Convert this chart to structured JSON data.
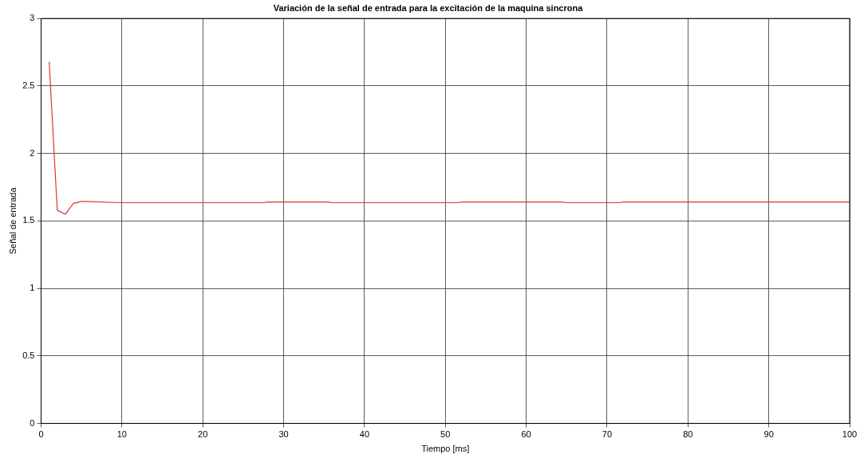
{
  "chart_data": {
    "type": "line",
    "title": "Variación de la señal de entrada para la excitación de la maquina sincrona",
    "xlabel": "Tiempo [ms]",
    "ylabel": "Señal de entrada",
    "x": [
      1,
      2,
      3,
      4,
      5,
      5.5,
      10,
      27.5,
      28,
      35.5,
      36,
      51.5,
      52,
      64.5,
      65,
      71.5,
      72,
      100
    ],
    "series": [
      {
        "color": "#e03030",
        "values": [
          2.68,
          1.58,
          1.55,
          1.63,
          1.645,
          1.645,
          1.635,
          1.635,
          1.64,
          1.64,
          1.635,
          1.635,
          1.64,
          1.64,
          1.635,
          1.635,
          1.64,
          1.64
        ]
      }
    ],
    "xlim": [
      0,
      100
    ],
    "xticks": [
      0,
      10,
      20,
      30,
      40,
      50,
      60,
      70,
      80,
      90,
      100
    ],
    "ylim": [
      0,
      3
    ],
    "yticks": [
      0,
      0.5,
      1,
      1.5,
      2,
      2.5,
      3
    ],
    "grid": true,
    "line_style": "solid",
    "marker": "none",
    "legend": false
  }
}
